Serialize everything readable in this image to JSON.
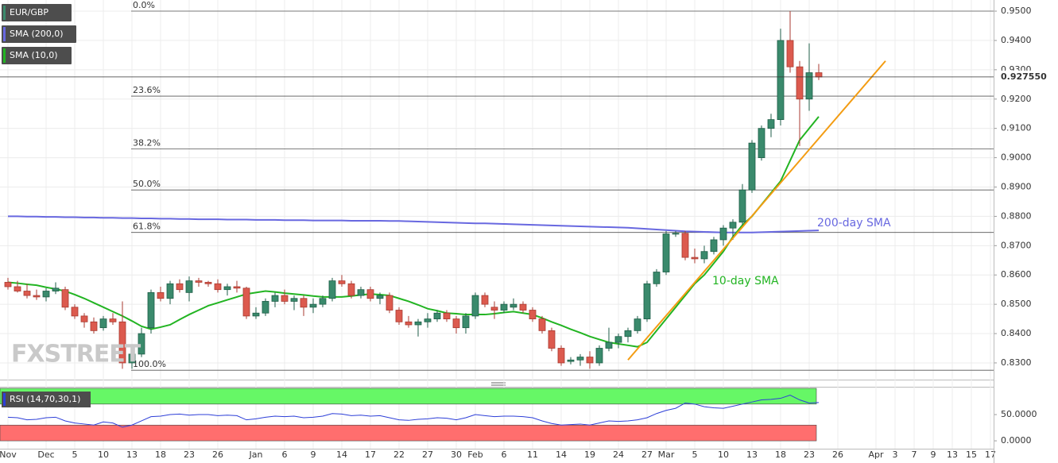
{
  "chart_data": [
    {
      "type": "candlestick",
      "title": "EUR/GBP",
      "up_color": "#3a8a6c",
      "down_color": "#dc5a4e",
      "grid": true,
      "watermark": "FXSTREET",
      "categories": [
        "Nov",
        null,
        null,
        null,
        "Dec",
        null,
        null,
        "5",
        null,
        null,
        "10",
        null,
        null,
        "13",
        null,
        null,
        "18",
        null,
        null,
        "23",
        null,
        null,
        "26",
        null,
        null,
        null,
        "Jan",
        null,
        null,
        "6",
        null,
        null,
        "9",
        null,
        null,
        "14",
        null,
        null,
        "17",
        null,
        null,
        "22",
        null,
        null,
        "27",
        null,
        null,
        "30",
        null,
        "Feb",
        null,
        null,
        "6",
        null,
        null,
        "11",
        null,
        null,
        "14",
        null,
        null,
        "19",
        null,
        null,
        "24",
        null,
        null,
        "27",
        null,
        "Mar",
        null,
        null,
        "5",
        null,
        null,
        "10",
        null,
        null,
        "13",
        null,
        null,
        "18",
        null,
        null,
        "23",
        null,
        null,
        "26",
        null,
        null,
        null,
        "Apr",
        null,
        "3",
        null,
        "7",
        null,
        "9",
        null,
        "13",
        null,
        "15",
        null,
        "17"
      ],
      "open": [
        0.8575,
        0.856,
        0.8545,
        0.853,
        0.8525,
        0.8545,
        0.855,
        0.849,
        0.846,
        0.844,
        0.842,
        0.845,
        0.844,
        0.83,
        0.833,
        0.842,
        0.854,
        0.852,
        0.857,
        0.854,
        0.858,
        0.8575,
        0.857,
        0.855,
        0.856,
        0.8555,
        0.846,
        0.847,
        0.851,
        0.853,
        0.851,
        0.852,
        0.849,
        0.85,
        0.852,
        0.858,
        0.857,
        0.853,
        0.855,
        0.852,
        0.853,
        0.848,
        0.844,
        0.843,
        0.844,
        0.845,
        0.847,
        0.845,
        0.842,
        0.846,
        0.853,
        0.849,
        0.848,
        0.849,
        0.85,
        0.848,
        0.845,
        0.841,
        0.835,
        0.8305,
        0.831,
        0.832,
        0.83,
        0.835,
        0.837,
        0.839,
        0.841,
        0.845,
        0.857,
        0.861,
        0.874,
        0.8742,
        0.866,
        0.8655,
        0.868,
        0.872,
        0.876,
        0.878,
        0.889,
        0.9,
        0.91,
        0.913,
        0.94,
        0.931,
        0.92,
        0.929,
        null,
        null,
        null,
        null,
        null,
        null,
        null,
        null,
        null,
        null,
        null,
        null,
        null,
        null,
        null,
        null,
        null,
        null
      ],
      "high": [
        0.859,
        0.858,
        0.857,
        0.855,
        0.8555,
        0.8575,
        0.856,
        0.85,
        0.847,
        0.8455,
        0.846,
        0.847,
        0.851,
        0.835,
        0.842,
        0.855,
        0.856,
        0.858,
        0.8585,
        0.8595,
        0.859,
        0.858,
        0.8585,
        0.857,
        0.858,
        0.856,
        0.849,
        0.852,
        0.854,
        0.855,
        0.853,
        0.853,
        0.852,
        0.853,
        0.859,
        0.86,
        0.858,
        0.856,
        0.856,
        0.854,
        0.854,
        0.849,
        0.846,
        0.845,
        0.847,
        0.848,
        0.848,
        0.846,
        0.847,
        0.854,
        0.854,
        0.851,
        0.851,
        0.852,
        0.851,
        0.849,
        0.846,
        0.842,
        0.836,
        0.832,
        0.833,
        0.834,
        0.836,
        0.842,
        0.84,
        0.842,
        0.846,
        0.858,
        0.862,
        0.875,
        0.875,
        0.875,
        0.869,
        0.87,
        0.873,
        0.877,
        0.879,
        0.891,
        0.906,
        0.911,
        0.915,
        0.944,
        0.95,
        0.933,
        0.939,
        0.932,
        null,
        null,
        null,
        null,
        null,
        null,
        null,
        null,
        null,
        null,
        null,
        null,
        null,
        null,
        null,
        null,
        null,
        null
      ],
      "low": [
        0.855,
        0.854,
        0.852,
        0.8515,
        0.851,
        0.8535,
        0.848,
        0.845,
        0.842,
        0.84,
        0.841,
        0.843,
        0.828,
        0.828,
        0.832,
        0.84,
        0.851,
        0.85,
        0.854,
        0.851,
        0.856,
        0.856,
        0.854,
        0.853,
        0.854,
        0.845,
        0.845,
        0.846,
        0.849,
        0.85,
        0.848,
        0.846,
        0.847,
        0.849,
        0.851,
        0.856,
        0.852,
        0.852,
        0.851,
        0.85,
        0.847,
        0.843,
        0.842,
        0.839,
        0.842,
        0.844,
        0.844,
        0.84,
        0.84,
        0.845,
        0.849,
        0.845,
        0.847,
        0.848,
        0.847,
        0.844,
        0.84,
        0.834,
        0.829,
        0.8295,
        0.829,
        0.828,
        0.829,
        0.834,
        0.835,
        0.837,
        0.84,
        0.844,
        0.856,
        0.86,
        0.873,
        0.865,
        0.864,
        0.864,
        0.867,
        0.87,
        0.872,
        0.877,
        0.888,
        0.899,
        0.907,
        0.911,
        0.929,
        0.904,
        0.916,
        0.9265,
        null,
        null,
        null,
        null,
        null,
        null,
        null,
        null,
        null,
        null,
        null,
        null,
        null,
        null,
        null,
        null,
        null,
        null
      ],
      "close": [
        0.856,
        0.8545,
        0.853,
        0.8525,
        0.8545,
        0.8555,
        0.849,
        0.846,
        0.844,
        0.841,
        0.845,
        0.844,
        0.83,
        0.833,
        0.84,
        0.854,
        0.852,
        0.857,
        0.855,
        0.858,
        0.8575,
        0.857,
        0.855,
        0.856,
        0.8555,
        0.846,
        0.847,
        0.851,
        0.853,
        0.851,
        0.852,
        0.849,
        0.85,
        0.852,
        0.858,
        0.857,
        0.853,
        0.855,
        0.852,
        0.853,
        0.848,
        0.844,
        0.843,
        0.844,
        0.845,
        0.847,
        0.845,
        0.842,
        0.846,
        0.853,
        0.85,
        0.848,
        0.85,
        0.85,
        0.848,
        0.845,
        0.841,
        0.835,
        0.83,
        0.831,
        0.832,
        0.83,
        0.835,
        0.837,
        0.839,
        0.841,
        0.845,
        0.857,
        0.861,
        0.874,
        0.8742,
        0.866,
        0.8655,
        0.868,
        0.872,
        0.876,
        0.878,
        0.889,
        0.905,
        0.91,
        0.913,
        0.94,
        0.931,
        0.92,
        0.929,
        0.92755,
        null,
        null,
        null,
        null,
        null,
        null,
        null,
        null,
        null,
        null,
        null,
        null,
        null,
        null,
        null,
        null,
        null,
        null
      ],
      "series": [
        {
          "name": "SMA (200,0)",
          "color": "#6868e0",
          "values": [
            0.88,
            0.88,
            0.8799,
            0.8799,
            0.8798,
            0.8798,
            0.8797,
            0.8797,
            0.8796,
            0.8796,
            0.8795,
            0.8795,
            0.8794,
            0.8794,
            0.8793,
            0.8793,
            0.8792,
            0.8792,
            0.8791,
            0.8791,
            0.879,
            0.879,
            0.879,
            0.8789,
            0.8789,
            0.8789,
            0.8788,
            0.8788,
            0.8788,
            0.8787,
            0.8787,
            0.8787,
            0.8786,
            0.8786,
            0.8786,
            0.8786,
            0.8785,
            0.8785,
            0.8785,
            0.8785,
            0.8784,
            0.8784,
            0.8783,
            0.8782,
            0.8781,
            0.878,
            0.8779,
            0.8778,
            0.8777,
            0.8776,
            0.8776,
            0.8775,
            0.8774,
            0.8773,
            0.8772,
            0.8771,
            0.877,
            0.8769,
            0.8768,
            0.8767,
            0.8766,
            0.8765,
            0.8764,
            0.8763,
            0.8762,
            0.8761,
            0.8759,
            0.8757,
            0.8755,
            0.8753,
            0.8751,
            0.8749,
            0.8748,
            0.8747,
            0.8746,
            0.8745,
            0.8745,
            0.8745,
            0.8745,
            0.8746,
            0.8747,
            0.8748,
            0.8749,
            0.875,
            0.8751,
            0.8752,
            null,
            null,
            null,
            null,
            null,
            null,
            null,
            null,
            null,
            null,
            null,
            null,
            null,
            null,
            null,
            null,
            null,
            null
          ]
        },
        {
          "name": "SMA (10,0)",
          "color": "#22b422",
          "values": [
            0.8575,
            0.8572,
            0.8568,
            0.8565,
            0.8558,
            0.8552,
            0.8545,
            0.8533,
            0.852,
            0.8505,
            0.849,
            0.8475,
            0.846,
            0.8443,
            0.8425,
            0.8415,
            0.8422,
            0.843,
            0.8448,
            0.8465,
            0.848,
            0.8495,
            0.8505,
            0.8515,
            0.8525,
            0.8535,
            0.854,
            0.8545,
            0.8542,
            0.8538,
            0.8535,
            0.8532,
            0.8528,
            0.8525,
            0.8525,
            0.8525,
            0.8528,
            0.8532,
            0.8535,
            0.8533,
            0.853,
            0.852,
            0.851,
            0.8498,
            0.8485,
            0.8478,
            0.847,
            0.8468,
            0.8465,
            0.8465,
            0.8465,
            0.8468,
            0.8472,
            0.8475,
            0.847,
            0.8465,
            0.8453,
            0.844,
            0.8428,
            0.8415,
            0.8403,
            0.839,
            0.838,
            0.837,
            0.8365,
            0.836,
            0.8355,
            0.837,
            0.841,
            0.845,
            0.849,
            0.853,
            0.857,
            0.86,
            0.864,
            0.868,
            0.873,
            0.877,
            0.88,
            0.884,
            0.888,
            0.892,
            0.899,
            0.906,
            0.91,
            0.914,
            null,
            null,
            null,
            null,
            null,
            null,
            null,
            null,
            null,
            null,
            null,
            null,
            null,
            null,
            null,
            null,
            null,
            null
          ]
        }
      ],
      "annotations": [
        {
          "text": "200-day SMA",
          "color": "#6868e0"
        },
        {
          "text": "10-day SMA",
          "color": "#22b422"
        }
      ],
      "fib_levels": [
        {
          "label": "0.0%",
          "value": 0.95
        },
        {
          "label": "23.6%",
          "value": 0.921
        },
        {
          "label": "38.2%",
          "value": 0.903
        },
        {
          "label": "50.0%",
          "value": 0.889
        },
        {
          "label": "61.8%",
          "value": 0.8745
        },
        {
          "label": "100.0%",
          "value": 0.8275
        }
      ],
      "trendline": {
        "x": [
          65,
          92
        ],
        "y": [
          0.831,
          0.933
        ],
        "color": "#f39c12"
      },
      "last_price": {
        "value": 0.92755,
        "label": "0.927550"
      },
      "ylim": [
        0.8243,
        0.9538
      ],
      "yticks": [
        {
          "value": 0.83,
          "label": "0.8300"
        },
        {
          "value": 0.84,
          "label": "0.8400"
        },
        {
          "value": 0.85,
          "label": "0.8500"
        },
        {
          "value": 0.86,
          "label": "0.8600"
        },
        {
          "value": 0.87,
          "label": "0.8700"
        },
        {
          "value": 0.88,
          "label": "0.8800"
        },
        {
          "value": 0.89,
          "label": "0.8900"
        },
        {
          "value": 0.9,
          "label": "0.9000"
        },
        {
          "value": 0.91,
          "label": "0.9100"
        },
        {
          "value": 0.92,
          "label": "0.9200"
        },
        {
          "value": 0.93,
          "label": "0.9300"
        },
        {
          "value": 0.94,
          "label": "0.9400"
        },
        {
          "value": 0.95,
          "label": "0.9500"
        }
      ]
    },
    {
      "type": "line",
      "title": "RSI (14,70,30,1)",
      "color": "#2d3fd8",
      "values": [
        45,
        44,
        40,
        41,
        44,
        45,
        38,
        34,
        32,
        30,
        36,
        34,
        26,
        30,
        38,
        46,
        47,
        50,
        51,
        49,
        50,
        50,
        48,
        49,
        48,
        40,
        42,
        45,
        47,
        46,
        47,
        44,
        45,
        47,
        52,
        51,
        48,
        49,
        47,
        48,
        44,
        40,
        39,
        41,
        42,
        44,
        43,
        40,
        44,
        50,
        48,
        46,
        47,
        47,
        46,
        44,
        38,
        33,
        30,
        31,
        32,
        30,
        34,
        38,
        37,
        38,
        40,
        44,
        52,
        58,
        62,
        72,
        70,
        65,
        63,
        62,
        66,
        70,
        74,
        78,
        79,
        81,
        87,
        78,
        72,
        73,
        null,
        null,
        null,
        null,
        null,
        null,
        null,
        null,
        null,
        null,
        null,
        null,
        null,
        null,
        null,
        null,
        null,
        null
      ],
      "bands": [
        {
          "from": 70,
          "to": 100,
          "color": "#66f766"
        },
        {
          "from": 0,
          "to": 30,
          "color": "#ff6e6e"
        }
      ],
      "ylim": [
        -15,
        101.5
      ],
      "yticks": [
        {
          "value": 50,
          "label": "50.0000"
        },
        {
          "value": 0,
          "label": "0.0000"
        }
      ]
    }
  ]
}
